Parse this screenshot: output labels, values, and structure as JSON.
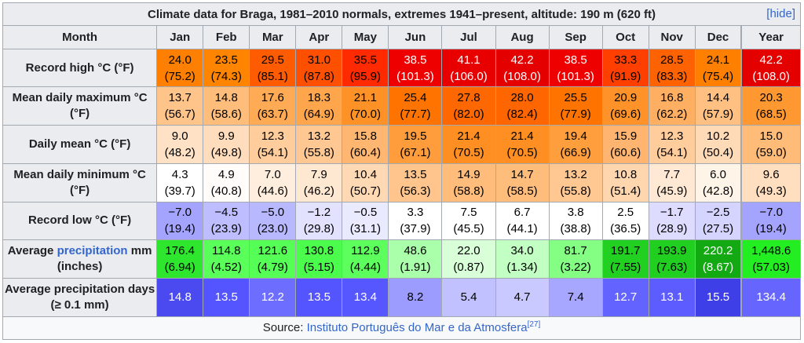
{
  "title": "Climate data for Braga, 1981–2010 normals, extremes 1941–present, altitude: 190 m (620 ft)",
  "hide_label": "[hide]",
  "hide_text": "hide",
  "header": {
    "month_label": "Month",
    "months": [
      "Jan",
      "Feb",
      "Mar",
      "Apr",
      "May",
      "Jun",
      "Jul",
      "Aug",
      "Sep",
      "Oct",
      "Nov",
      "Dec",
      "Year"
    ]
  },
  "rows": [
    {
      "label": "Record high °C (°F)",
      "cells": [
        {
          "c": "24.0",
          "f": "(75.2)",
          "bg": "#ff8000",
          "fg": "#000000"
        },
        {
          "c": "23.5",
          "f": "(74.3)",
          "bg": "#ff8400",
          "fg": "#000000"
        },
        {
          "c": "29.5",
          "f": "(85.1)",
          "bg": "#ff5b00",
          "fg": "#000000"
        },
        {
          "c": "31.0",
          "f": "(87.8)",
          "bg": "#ff4f00",
          "fg": "#000000"
        },
        {
          "c": "35.5",
          "f": "(95.9)",
          "bg": "#ff2a00",
          "fg": "#000000"
        },
        {
          "c": "38.5",
          "f": "(101.3)",
          "bg": "#ee0000",
          "fg": "#ffffff"
        },
        {
          "c": "41.1",
          "f": "(106.0)",
          "bg": "#e80000",
          "fg": "#ffffff"
        },
        {
          "c": "42.2",
          "f": "(108.0)",
          "bg": "#e50000",
          "fg": "#ffffff"
        },
        {
          "c": "38.5",
          "f": "(101.3)",
          "bg": "#ee0000",
          "fg": "#ffffff"
        },
        {
          "c": "33.3",
          "f": "(91.9)",
          "bg": "#ff3f00",
          "fg": "#000000"
        },
        {
          "c": "28.5",
          "f": "(83.3)",
          "bg": "#ff6200",
          "fg": "#000000"
        },
        {
          "c": "24.1",
          "f": "(75.4)",
          "bg": "#ff8000",
          "fg": "#000000"
        },
        {
          "c": "42.2",
          "f": "(108.0)",
          "bg": "#e50000",
          "fg": "#ffffff"
        }
      ]
    },
    {
      "label": "Mean daily maximum °C (°F)",
      "cells": [
        {
          "c": "13.7",
          "f": "(56.7)",
          "bg": "#ffc48a",
          "fg": "#000000"
        },
        {
          "c": "14.8",
          "f": "(58.6)",
          "bg": "#ffbd7b",
          "fg": "#000000"
        },
        {
          "c": "17.6",
          "f": "(63.7)",
          "bg": "#ffaa55",
          "fg": "#000000"
        },
        {
          "c": "18.3",
          "f": "(64.9)",
          "bg": "#ffa64d",
          "fg": "#000000"
        },
        {
          "c": "21.1",
          "f": "(70.0)",
          "bg": "#ff9226",
          "fg": "#000000"
        },
        {
          "c": "25.4",
          "f": "(77.7)",
          "bg": "#ff7400",
          "fg": "#000000"
        },
        {
          "c": "27.8",
          "f": "(82.0)",
          "bg": "#ff6800",
          "fg": "#000000"
        },
        {
          "c": "28.0",
          "f": "(82.4)",
          "bg": "#ff6600",
          "fg": "#000000"
        },
        {
          "c": "25.5",
          "f": "(77.9)",
          "bg": "#ff7400",
          "fg": "#000000"
        },
        {
          "c": "20.9",
          "f": "(69.6)",
          "bg": "#ff932a",
          "fg": "#000000"
        },
        {
          "c": "16.8",
          "f": "(62.2)",
          "bg": "#ffaf61",
          "fg": "#000000"
        },
        {
          "c": "14.4",
          "f": "(57.9)",
          "bg": "#ffc081",
          "fg": "#000000"
        },
        {
          "c": "20.3",
          "f": "(68.5)",
          "bg": "#ff9831",
          "fg": "#000000"
        }
      ]
    },
    {
      "label": "Daily mean °C (°F)",
      "cells": [
        {
          "c": "9.0",
          "f": "(48.2)",
          "bg": "#ffe2c6",
          "fg": "#000000"
        },
        {
          "c": "9.9",
          "f": "(49.8)",
          "bg": "#ffdcbb",
          "fg": "#000000"
        },
        {
          "c": "12.3",
          "f": "(54.1)",
          "bg": "#ffcd9c",
          "fg": "#000000"
        },
        {
          "c": "13.2",
          "f": "(55.8)",
          "bg": "#ffc791",
          "fg": "#000000"
        },
        {
          "c": "15.8",
          "f": "(60.4)",
          "bg": "#ffb670",
          "fg": "#000000"
        },
        {
          "c": "19.5",
          "f": "(67.1)",
          "bg": "#ff9d3c",
          "fg": "#000000"
        },
        {
          "c": "21.4",
          "f": "(70.5)",
          "bg": "#ff8f22",
          "fg": "#000000"
        },
        {
          "c": "21.4",
          "f": "(70.5)",
          "bg": "#ff8f22",
          "fg": "#000000"
        },
        {
          "c": "19.4",
          "f": "(66.9)",
          "bg": "#ff9e3d",
          "fg": "#000000"
        },
        {
          "c": "15.9",
          "f": "(60.6)",
          "bg": "#ffb56f",
          "fg": "#000000"
        },
        {
          "c": "12.3",
          "f": "(54.1)",
          "bg": "#ffcd9c",
          "fg": "#000000"
        },
        {
          "c": "10.2",
          "f": "(50.4)",
          "bg": "#ffdab7",
          "fg": "#000000"
        },
        {
          "c": "15.0",
          "f": "(59.0)",
          "bg": "#ffbb78",
          "fg": "#000000"
        }
      ]
    },
    {
      "label": "Mean daily minimum °C (°F)",
      "cells": [
        {
          "c": "4.3",
          "f": "(39.7)",
          "bg": "#ffffff",
          "fg": "#000000"
        },
        {
          "c": "4.9",
          "f": "(40.8)",
          "bg": "#fffcf9",
          "fg": "#000000"
        },
        {
          "c": "7.0",
          "f": "(44.6)",
          "bg": "#ffeedd",
          "fg": "#000000"
        },
        {
          "c": "7.9",
          "f": "(46.2)",
          "bg": "#ffe8d2",
          "fg": "#000000"
        },
        {
          "c": "10.4",
          "f": "(50.7)",
          "bg": "#ffd9b4",
          "fg": "#000000"
        },
        {
          "c": "13.5",
          "f": "(56.3)",
          "bg": "#ffc58c",
          "fg": "#000000"
        },
        {
          "c": "14.9",
          "f": "(58.8)",
          "bg": "#ffbc7a",
          "fg": "#000000"
        },
        {
          "c": "14.7",
          "f": "(58.5)",
          "bg": "#ffbd7c",
          "fg": "#000000"
        },
        {
          "c": "13.2",
          "f": "(55.8)",
          "bg": "#ffc791",
          "fg": "#000000"
        },
        {
          "c": "10.8",
          "f": "(51.4)",
          "bg": "#ffd6ae",
          "fg": "#000000"
        },
        {
          "c": "7.7",
          "f": "(45.9)",
          "bg": "#ffe9d4",
          "fg": "#000000"
        },
        {
          "c": "6.0",
          "f": "(42.8)",
          "bg": "#fff4e8",
          "fg": "#000000"
        },
        {
          "c": "9.6",
          "f": "(49.3)",
          "bg": "#ffdfbf",
          "fg": "#000000"
        }
      ]
    },
    {
      "label": "Record low °C (°F)",
      "cells": [
        {
          "c": "−7.0",
          "f": "(19.4)",
          "bg": "#a4a4ff",
          "fg": "#000000"
        },
        {
          "c": "−4.5",
          "f": "(23.9)",
          "bg": "#bdbdff",
          "fg": "#000000"
        },
        {
          "c": "−5.0",
          "f": "(23.0)",
          "bg": "#b8b8ff",
          "fg": "#000000"
        },
        {
          "c": "−1.2",
          "f": "(29.8)",
          "bg": "#e2e2ff",
          "fg": "#000000"
        },
        {
          "c": "−0.5",
          "f": "(31.1)",
          "bg": "#eaeaff",
          "fg": "#000000"
        },
        {
          "c": "3.3",
          "f": "(37.9)",
          "bg": "#ffffff",
          "fg": "#000000"
        },
        {
          "c": "7.5",
          "f": "(45.5)",
          "bg": "#ffffff",
          "fg": "#000000"
        },
        {
          "c": "6.7",
          "f": "(44.1)",
          "bg": "#ffffff",
          "fg": "#000000"
        },
        {
          "c": "3.8",
          "f": "(38.8)",
          "bg": "#ffffff",
          "fg": "#000000"
        },
        {
          "c": "2.5",
          "f": "(36.5)",
          "bg": "#ffffff",
          "fg": "#000000"
        },
        {
          "c": "−1.7",
          "f": "(28.9)",
          "bg": "#dddcff",
          "fg": "#000000"
        },
        {
          "c": "−2.5",
          "f": "(27.5)",
          "bg": "#d4d4ff",
          "fg": "#000000"
        },
        {
          "c": "−7.0",
          "f": "(19.4)",
          "bg": "#a4a4ff",
          "fg": "#000000"
        }
      ]
    },
    {
      "label_before": "Average ",
      "label_link": "precipitation",
      "label_after": " mm (inches)",
      "cells": [
        {
          "c": "176.4",
          "f": "(6.94)",
          "bg": "#2ee62e",
          "fg": "#000000"
        },
        {
          "c": "114.8",
          "f": "(4.52)",
          "bg": "#5aff5a",
          "fg": "#000000"
        },
        {
          "c": "121.6",
          "f": "(4.79)",
          "bg": "#55ff55",
          "fg": "#000000"
        },
        {
          "c": "130.8",
          "f": "(5.15)",
          "bg": "#4cfc4c",
          "fg": "#000000"
        },
        {
          "c": "112.9",
          "f": "(4.44)",
          "bg": "#5cff5c",
          "fg": "#000000"
        },
        {
          "c": "48.6",
          "f": "(1.91)",
          "bg": "#aaffaa",
          "fg": "#000000"
        },
        {
          "c": "22.0",
          "f": "(0.87)",
          "bg": "#d8ffd8",
          "fg": "#000000"
        },
        {
          "c": "34.0",
          "f": "(1.34)",
          "bg": "#c2ffc2",
          "fg": "#000000"
        },
        {
          "c": "81.7",
          "f": "(3.22)",
          "bg": "#84ff84",
          "fg": "#000000"
        },
        {
          "c": "191.7",
          "f": "(7.55)",
          "bg": "#22d022",
          "fg": "#000000"
        },
        {
          "c": "193.9",
          "f": "(7.63)",
          "bg": "#21cf21",
          "fg": "#000000"
        },
        {
          "c": "220.2",
          "f": "(8.67)",
          "bg": "#12a912",
          "fg": "#ffffff"
        },
        {
          "c": "1,448.6",
          "f": "(57.03)",
          "bg": "#22ee22",
          "fg": "#000000"
        }
      ]
    },
    {
      "label": "Average precipitation days (≥ 0.1 mm)",
      "cells": [
        {
          "c": "14.8",
          "bg": "#4a4af0",
          "fg": "#ffffff"
        },
        {
          "c": "13.5",
          "bg": "#5555ff",
          "fg": "#ffffff"
        },
        {
          "c": "12.2",
          "bg": "#6d6dff",
          "fg": "#ffffff"
        },
        {
          "c": "13.5",
          "bg": "#5555ff",
          "fg": "#ffffff"
        },
        {
          "c": "13.4",
          "bg": "#5757ff",
          "fg": "#ffffff"
        },
        {
          "c": "8.2",
          "bg": "#9c9cff",
          "fg": "#000000"
        },
        {
          "c": "5.4",
          "bg": "#c1c1ff",
          "fg": "#000000"
        },
        {
          "c": "4.7",
          "bg": "#c9c9ff",
          "fg": "#000000"
        },
        {
          "c": "7.4",
          "bg": "#a7a7ff",
          "fg": "#000000"
        },
        {
          "c": "12.7",
          "bg": "#6363ff",
          "fg": "#ffffff"
        },
        {
          "c": "13.1",
          "bg": "#5c5cff",
          "fg": "#ffffff"
        },
        {
          "c": "15.5",
          "bg": "#3f3fe8",
          "fg": "#ffffff"
        },
        {
          "c": "134.4",
          "bg": "#6666ff",
          "fg": "#ffffff"
        }
      ]
    }
  ],
  "source": {
    "prefix": "Source: ",
    "link": "Instituto Português do Mar e da Atmosfera",
    "ref": "[27]"
  }
}
